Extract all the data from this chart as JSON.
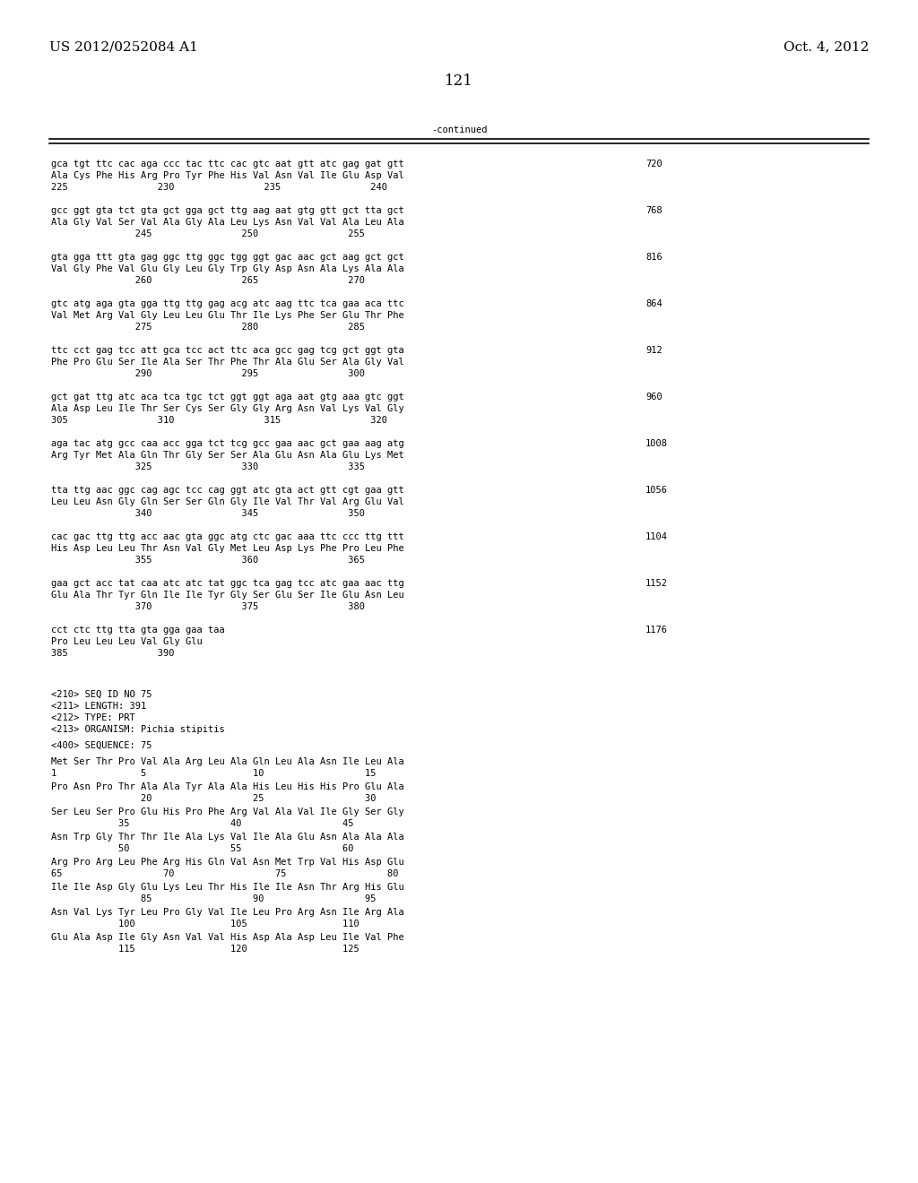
{
  "header_left": "US 2012/0252084 A1",
  "header_right": "Oct. 4, 2012",
  "page_number": "121",
  "continued_label": "-continued",
  "background_color": "#ffffff",
  "text_color": "#000000",
  "font_size_header": 11,
  "font_size_body": 7.5,
  "font_size_page": 12,
  "content_blocks": [
    {
      "line1": "gca tgt ttc cac aga ccc tac ttc cac gtc aat gtt atc gag gat gtt",
      "line2": "Ala Cys Phe His Arg Pro Tyr Phe His Val Asn Val Ile Glu Asp Val",
      "line3": "225                230                235                240",
      "number": "720"
    },
    {
      "line1": "gcc ggt gta tct gta gct gga gct ttg aag aat gtg gtt gct tta gct",
      "line2": "Ala Gly Val Ser Val Ala Gly Ala Leu Lys Asn Val Val Ala Leu Ala",
      "line3": "               245                250                255",
      "number": "768"
    },
    {
      "line1": "gta gga ttt gta gag ggc ttg ggc tgg ggt gac aac gct aag gct gct",
      "line2": "Val Gly Phe Val Glu Gly Leu Gly Trp Gly Asp Asn Ala Lys Ala Ala",
      "line3": "               260                265                270",
      "number": "816"
    },
    {
      "line1": "gtc atg aga gta gga ttg ttg gag acg atc aag ttc tca gaa aca ttc",
      "line2": "Val Met Arg Val Gly Leu Leu Glu Thr Ile Lys Phe Ser Glu Thr Phe",
      "line3": "               275                280                285",
      "number": "864"
    },
    {
      "line1": "ttc cct gag tcc att gca tcc act ttc aca gcc gag tcg gct ggt gta",
      "line2": "Phe Pro Glu Ser Ile Ala Ser Thr Phe Thr Ala Glu Ser Ala Gly Val",
      "line3": "               290                295                300",
      "number": "912"
    },
    {
      "line1": "gct gat ttg atc aca tca tgc tct ggt ggt aga aat gtg aaa gtc ggt",
      "line2": "Ala Asp Leu Ile Thr Ser Cys Ser Gly Gly Arg Asn Val Lys Val Gly",
      "line3": "305                310                315                320",
      "number": "960"
    },
    {
      "line1": "aga tac atg gcc caa acc gga tct tcg gcc gaa aac gct gaa aag atg",
      "line2": "Arg Tyr Met Ala Gln Thr Gly Ser Ser Ala Glu Asn Ala Glu Lys Met",
      "line3": "               325                330                335",
      "number": "1008"
    },
    {
      "line1": "tta ttg aac ggc cag agc tcc cag ggt atc gta act gtt cgt gaa gtt",
      "line2": "Leu Leu Asn Gly Gln Ser Ser Gln Gly Ile Val Thr Val Arg Glu Val",
      "line3": "               340                345                350",
      "number": "1056"
    },
    {
      "line1": "cac gac ttg ttg acc aac gta ggc atg ctc gac aaa ttc ccc ttg ttt",
      "line2": "His Asp Leu Leu Thr Asn Val Gly Met Leu Asp Lys Phe Pro Leu Phe",
      "line3": "               355                360                365",
      "number": "1104"
    },
    {
      "line1": "gaa gct acc tat caa atc atc tat ggc tca gag tcc atc gaa aac ttg",
      "line2": "Glu Ala Thr Tyr Gln Ile Ile Tyr Gly Ser Glu Ser Ile Glu Asn Leu",
      "line3": "               370                375                380",
      "number": "1152"
    },
    {
      "line1": "cct ctc ttg tta gta gga gaa taa",
      "line2": "Pro Leu Leu Leu Val Gly Glu",
      "line3": "385                390",
      "number": "1176"
    }
  ],
  "seq_info": [
    "<210> SEQ ID NO 75",
    "<211> LENGTH: 391",
    "<212> TYPE: PRT",
    "<213> ORGANISM: Pichia stipitis"
  ],
  "seq_label": "<400> SEQUENCE: 75",
  "protein_blocks": [
    {
      "line1": "Met Ser Thr Pro Val Ala Arg Leu Ala Gln Leu Ala Asn Ile Leu Ala",
      "line2": "1               5                   10                  15"
    },
    {
      "line1": "Pro Asn Pro Thr Ala Ala Tyr Ala Ala His Leu His His Pro Glu Ala",
      "line2": "                20                  25                  30"
    },
    {
      "line1": "Ser Leu Ser Pro Glu His Pro Phe Arg Val Ala Val Ile Gly Ser Gly",
      "line2": "            35                  40                  45"
    },
    {
      "line1": "Asn Trp Gly Thr Thr Ile Ala Lys Val Ile Ala Glu Asn Ala Ala Ala",
      "line2": "            50                  55                  60"
    },
    {
      "line1": "Arg Pro Arg Leu Phe Arg His Gln Val Asn Met Trp Val His Asp Glu",
      "line2": "65                  70                  75                  80"
    },
    {
      "line1": "Ile Ile Asp Gly Glu Lys Leu Thr His Ile Ile Asn Thr Arg His Glu",
      "line2": "                85                  90                  95"
    },
    {
      "line1": "Asn Val Lys Tyr Leu Pro Gly Val Ile Leu Pro Arg Asn Ile Arg Ala",
      "line2": "            100                 105                 110"
    },
    {
      "line1": "Glu Ala Asp Ile Gly Asn Val Val His Asp Ala Asp Leu Ile Val Phe",
      "line2": "            115                 120                 125"
    }
  ]
}
